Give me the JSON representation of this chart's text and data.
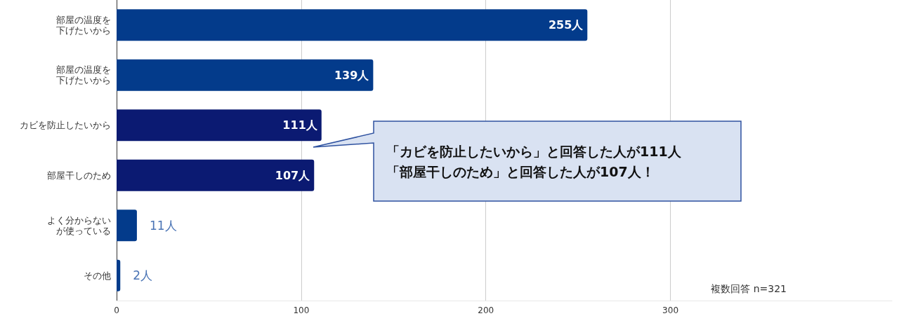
{
  "chart_data": {
    "type": "bar",
    "orientation": "horizontal",
    "categories": [
      "部屋の温度を下げたいから",
      "部屋の温度を下げたいから",
      "カビを防止したいから",
      "部屋干しのため",
      "よく分からないが使っている",
      "その他"
    ],
    "values": [
      255,
      139,
      111,
      107,
      11,
      2
    ],
    "colors": [
      "#033b8b",
      "#033b8b",
      "#0b1a72",
      "#0b1a72",
      "#033b8b",
      "#033b8b"
    ],
    "value_labels": [
      "255人",
      "139人",
      "111人",
      "107人",
      "11人",
      "2人"
    ],
    "xlim": [
      0,
      420
    ],
    "xticks": [
      0,
      100,
      200,
      300
    ],
    "grid": "x",
    "annotations": [
      "「カビを防止したいから」と回答した人が111人「部屋干しのため」と回答した人が107人！",
      "複数回答 n=321"
    ]
  }
}
